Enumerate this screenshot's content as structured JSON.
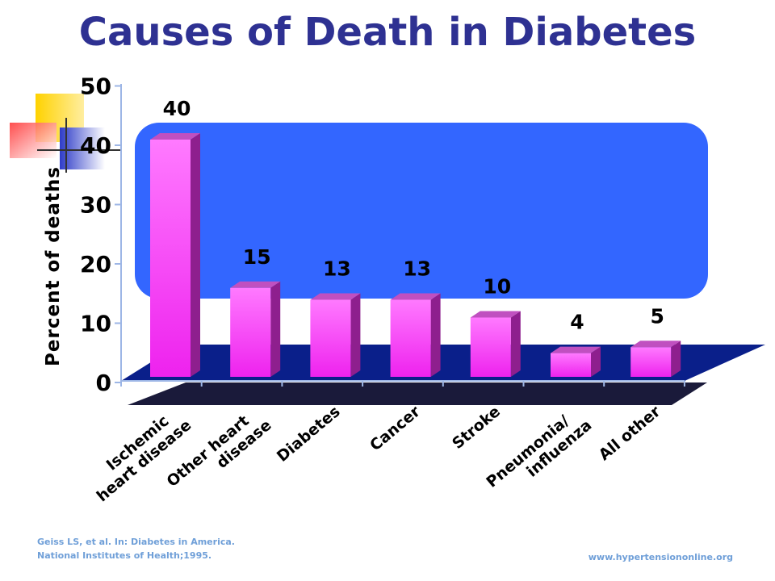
{
  "title": "Causes of Death in Diabetes",
  "citation": {
    "line1": "Geiss LS, et al. In: Diabetes in America.",
    "line2": "National Institutes of Health;1995."
  },
  "website": "www.hypertensiononline.org",
  "colors": {
    "title": "#2e3192",
    "bar_front_top": "#ff7aff",
    "bar_front_bottom": "#ee22ee",
    "bar_side": "#8e1f8e",
    "bar_top": "#c050c0",
    "floor": "#0a1f8a",
    "floor_front": "#1a1a3a",
    "backdrop": "#3366ff",
    "citation": "#6f9fd8"
  },
  "chart_data": {
    "type": "bar",
    "categories": [
      [
        "Ischemic",
        "heart disease"
      ],
      [
        "Other heart",
        "disease"
      ],
      [
        "Diabetes"
      ],
      [
        "Cancer"
      ],
      [
        "Stroke"
      ],
      [
        "Pneumonia/",
        "influenza"
      ],
      [
        "All other"
      ]
    ],
    "values": [
      40,
      15,
      13,
      13,
      10,
      4,
      5
    ],
    "data_labels": [
      "40",
      "15",
      "13",
      "13",
      "10",
      "4",
      "5"
    ],
    "ylabel": "Percent of deaths",
    "xlabel": "",
    "ylim": [
      0,
      50
    ],
    "yticks": [
      0,
      10,
      20,
      30,
      40,
      50
    ],
    "legend": "none",
    "grid": false
  }
}
